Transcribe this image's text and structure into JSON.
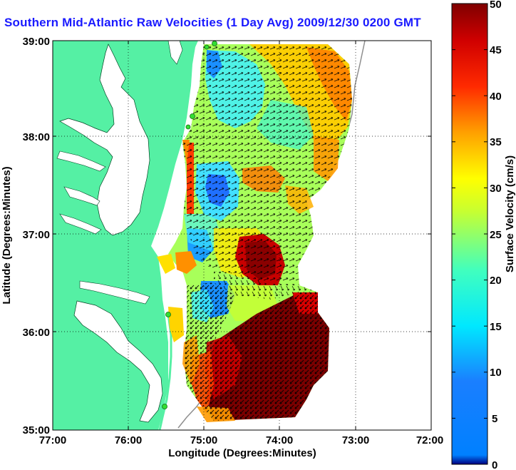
{
  "title": "Southern Mid-Atlantic Raw Velocities (1 Day Avg) 2009/12/30 0200 GMT",
  "xlabel": "Longitude (Degrees:Minutes)",
  "ylabel": "Latitude (Degrees:Minutes)",
  "x_ticks": [
    "77:00",
    "76:00",
    "75:00",
    "74:00",
    "73:00",
    "72:00"
  ],
  "y_ticks": [
    "39:00",
    "38:00",
    "37:00",
    "36:00",
    "35:00"
  ],
  "colorbar": {
    "label": "Surface Velocity (cm/s)",
    "ticks": [
      "50",
      "45",
      "40",
      "35",
      "30",
      "25",
      "20",
      "15",
      "10",
      "5",
      "0"
    ],
    "range": [
      0,
      50
    ],
    "units": "cm/s"
  },
  "colors": {
    "land": "#55f0a4",
    "water": "#ffffff",
    "title": "#1a1aff",
    "station": "#33dd33"
  },
  "map_extent": {
    "lon": [
      -77,
      -72
    ],
    "lat": [
      35,
      39
    ]
  }
}
